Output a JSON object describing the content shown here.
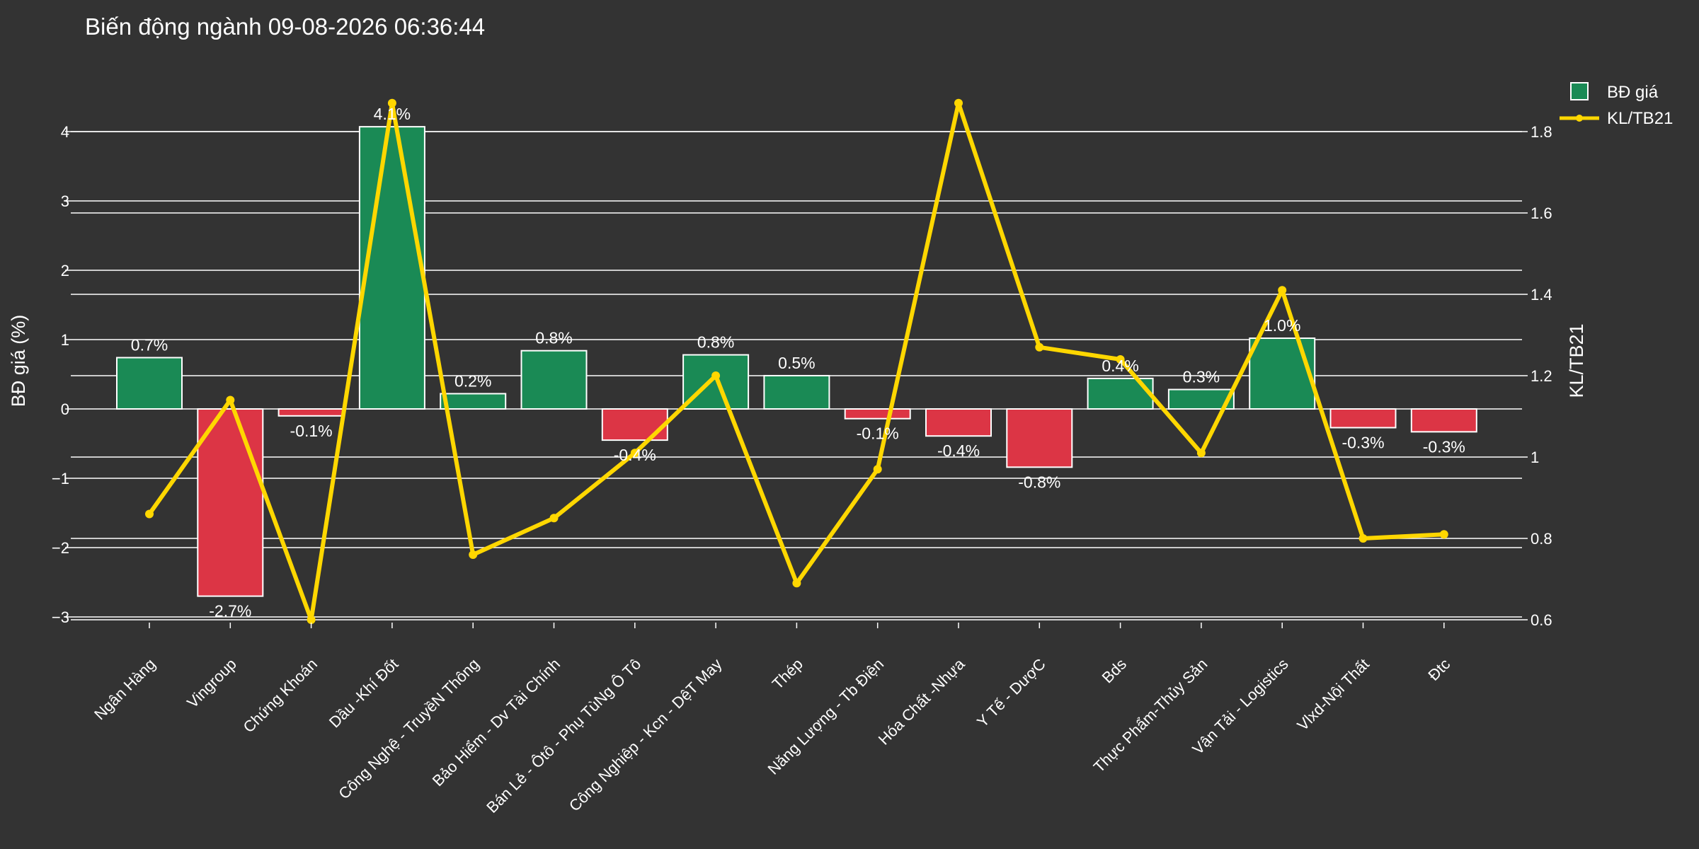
{
  "chart_data": {
    "type": "bar",
    "title": "Biến động ngành 09-08-2026 06:36:44",
    "ylabel": "BĐ giá (%)",
    "y2label": "KL/TB21",
    "ylim": [
      -3.1,
      4.6
    ],
    "y2lim": [
      0.59,
      1.88
    ],
    "yticks": [
      -3,
      -2,
      -1,
      0,
      1,
      2,
      3,
      4
    ],
    "yticklabels": [
      "−3",
      "−2",
      "−1",
      "0",
      "1",
      "2",
      "3",
      "4"
    ],
    "y2ticks": [
      0.6,
      0.8,
      1.0,
      1.2,
      1.4,
      1.6,
      1.8
    ],
    "y2ticklabels": [
      "0.6",
      "0.8",
      "1",
      "1.2",
      "1.4",
      "1.6",
      "1.8"
    ],
    "grid": true,
    "legend_position": "top-right",
    "categories": [
      "Ngân Hàng",
      "Vingroup",
      "Chứng Khoán",
      "Dầu -Khí Đốt",
      "Công Nghệ - TruyềN Thông",
      "Bảo Hiểm - Dv Tài Chính",
      "Bán Lẻ - Ôtô - Phụ TùNg Ô Tô",
      "Công Nghiệp - Kcn - DệT May",
      "Thép",
      "Năng Lượng - Tb Điện",
      "Hóa Chất -Nhựa",
      "Y Tế - DượC",
      "Bds",
      "Thực Phẩm-Thủy Sản",
      "Vận Tải - Logistics",
      "Vlxd-Nội Thất",
      "Đtc"
    ],
    "series": [
      {
        "name": "BĐ giá",
        "kind": "bar",
        "axis": "left",
        "values": [
          0.74,
          -2.7,
          -0.1,
          4.07,
          0.22,
          0.84,
          -0.45,
          0.78,
          0.48,
          -0.14,
          -0.39,
          -0.84,
          0.44,
          0.28,
          1.02,
          -0.27,
          -0.33
        ],
        "labels": [
          "0.7%",
          "-2.7%",
          "-0.1%",
          "4.1%",
          "0.2%",
          "0.8%",
          "-0.4%",
          "0.8%",
          "0.5%",
          "-0.1%",
          "-0.4%",
          "-0.8%",
          "0.4%",
          "0.3%",
          "1.0%",
          "-0.3%",
          "-0.3%"
        ]
      },
      {
        "name": "KL/TB21",
        "kind": "line",
        "axis": "right",
        "values": [
          0.86,
          1.14,
          0.6,
          1.87,
          0.76,
          0.85,
          1.01,
          1.2,
          0.69,
          0.97,
          1.87,
          1.27,
          1.24,
          1.01,
          1.41,
          0.8,
          0.81
        ]
      }
    ],
    "colors": {
      "positive": "#1a8a55",
      "negative": "#dc3545",
      "line": "#ffd700",
      "grid": "#ffffff",
      "background": "#333333"
    }
  }
}
